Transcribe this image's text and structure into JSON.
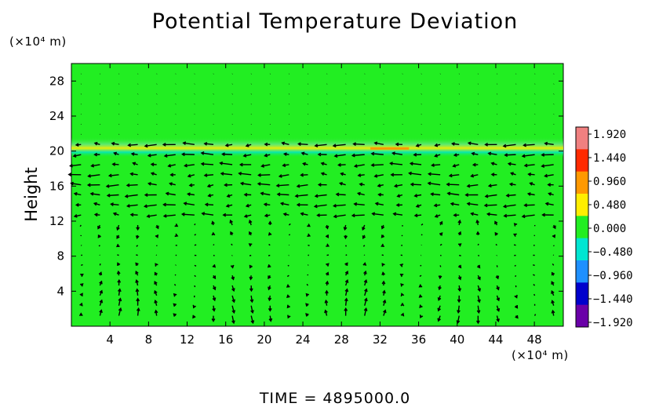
{
  "chart_data": {
    "type": "heatmap",
    "title": "Potential Temperature Deviation",
    "ylabel": "Height",
    "xlabel": "",
    "y_unit": "(×10⁴ m)",
    "x_unit": "(×10⁴ m)",
    "x_ticks": [
      "4",
      "8",
      "12",
      "16",
      "20",
      "24",
      "28",
      "32",
      "36",
      "40",
      "44",
      "48"
    ],
    "y_ticks": [
      "4",
      "8",
      "12",
      "16",
      "20",
      "24",
      "28"
    ],
    "xlim": [
      0,
      51
    ],
    "ylim": [
      0,
      30
    ],
    "background_value": 0.0,
    "features": [
      {
        "kind": "tropopause_band",
        "y": 20,
        "min_value": -0.48,
        "max_value": 0.96,
        "x_range": [
          0,
          51
        ]
      },
      {
        "kind": "warm_streak",
        "x_range": [
          31,
          35
        ],
        "y": 20.3,
        "value": 1.44
      }
    ],
    "overlay": "wind vectors",
    "colorbar": {
      "labels": [
        "1.920",
        "1.440",
        "0.960",
        "0.480",
        "0.000",
        "−0.480",
        "−0.960",
        "−1.440",
        "−1.920"
      ],
      "values": [
        1.92,
        1.44,
        0.96,
        0.48,
        0.0,
        -0.48,
        -0.96,
        -1.44,
        -1.92
      ],
      "colors": [
        "#f08080",
        "#ff2a00",
        "#ff9900",
        "#ffee00",
        "#22ee22",
        "#00e6d2",
        "#1e90ff",
        "#0000cc",
        "#6a00a8"
      ]
    },
    "grid": false,
    "legend": "colorbar right"
  },
  "footer": {
    "time_label": "TIME = 4895000.0"
  }
}
